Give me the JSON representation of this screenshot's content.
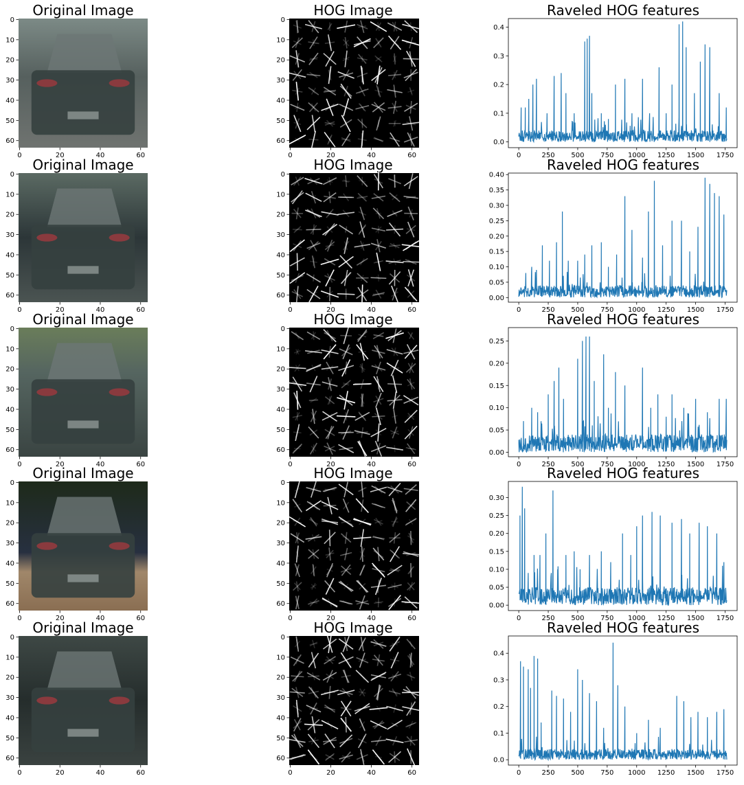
{
  "figure": {
    "columns": [
      {
        "title": "Original Image"
      },
      {
        "title": "HOG Image"
      },
      {
        "title": "Raveled HOG features"
      }
    ],
    "image_axes": {
      "xticks": [
        "0",
        "20",
        "40",
        "60"
      ],
      "yticks": [
        "0",
        "10",
        "20",
        "30",
        "40",
        "50",
        "60"
      ],
      "xticks_values": [
        0,
        20,
        40,
        60
      ],
      "yticks_values": [
        0,
        10,
        20,
        30,
        40,
        50,
        60
      ],
      "extent": [
        -0.5,
        63.5
      ]
    },
    "colors": {
      "line": "#1f77b4",
      "hog_background": "#000000",
      "hog_stroke": "#ffffff",
      "car_body": "#35403f",
      "background": "#ffffff"
    }
  },
  "chart_data": [
    {
      "type": "line",
      "title": "Raveled HOG features",
      "row": 1,
      "x_range": [
        0,
        1764
      ],
      "xticks": [
        0,
        250,
        500,
        750,
        1000,
        1250,
        1500,
        1750
      ],
      "ylim": [
        -0.02,
        0.43
      ],
      "yticks": [
        "0.0",
        "0.1",
        "0.2",
        "0.3",
        "0.4"
      ],
      "yticks_values": [
        0,
        0.1,
        0.2,
        0.3,
        0.4
      ],
      "peaks": [
        [
          20,
          0.12
        ],
        [
          55,
          0.12
        ],
        [
          85,
          0.15
        ],
        [
          120,
          0.2
        ],
        [
          150,
          0.22
        ],
        [
          240,
          0.1
        ],
        [
          300,
          0.23
        ],
        [
          360,
          0.24
        ],
        [
          400,
          0.17
        ],
        [
          470,
          0.1
        ],
        [
          560,
          0.35
        ],
        [
          580,
          0.36
        ],
        [
          600,
          0.37
        ],
        [
          620,
          0.17
        ],
        [
          700,
          0.1
        ],
        [
          760,
          0.08
        ],
        [
          820,
          0.2
        ],
        [
          900,
          0.22
        ],
        [
          960,
          0.1
        ],
        [
          1050,
          0.22
        ],
        [
          1110,
          0.1
        ],
        [
          1190,
          0.26
        ],
        [
          1250,
          0.1
        ],
        [
          1300,
          0.2
        ],
        [
          1360,
          0.41
        ],
        [
          1390,
          0.42
        ],
        [
          1420,
          0.33
        ],
        [
          1490,
          0.17
        ],
        [
          1540,
          0.28
        ],
        [
          1580,
          0.34
        ],
        [
          1620,
          0.33
        ],
        [
          1700,
          0.17
        ],
        [
          1760,
          0.12
        ]
      ],
      "base": 0.04
    },
    {
      "type": "line",
      "title": "Raveled HOG features",
      "row": 2,
      "x_range": [
        0,
        1764
      ],
      "xticks": [
        0,
        250,
        500,
        750,
        1000,
        1250,
        1500,
        1750
      ],
      "ylim": [
        -0.015,
        0.405
      ],
      "yticks": [
        "0.00",
        "0.05",
        "0.10",
        "0.15",
        "0.20",
        "0.25",
        "0.30",
        "0.35",
        "0.40"
      ],
      "yticks_values": [
        0,
        0.05,
        0.1,
        0.15,
        0.2,
        0.25,
        0.3,
        0.35,
        0.4
      ],
      "peaks": [
        [
          60,
          0.08
        ],
        [
          110,
          0.1
        ],
        [
          150,
          0.09
        ],
        [
          200,
          0.17
        ],
        [
          260,
          0.12
        ],
        [
          320,
          0.18
        ],
        [
          370,
          0.28
        ],
        [
          420,
          0.12
        ],
        [
          500,
          0.12
        ],
        [
          560,
          0.14
        ],
        [
          620,
          0.17
        ],
        [
          700,
          0.18
        ],
        [
          760,
          0.1
        ],
        [
          830,
          0.14
        ],
        [
          900,
          0.33
        ],
        [
          960,
          0.22
        ],
        [
          1050,
          0.13
        ],
        [
          1100,
          0.28
        ],
        [
          1150,
          0.38
        ],
        [
          1220,
          0.17
        ],
        [
          1300,
          0.25
        ],
        [
          1380,
          0.25
        ],
        [
          1450,
          0.15
        ],
        [
          1520,
          0.23
        ],
        [
          1580,
          0.39
        ],
        [
          1620,
          0.37
        ],
        [
          1660,
          0.34
        ],
        [
          1700,
          0.33
        ],
        [
          1740,
          0.27
        ]
      ],
      "base": 0.04
    },
    {
      "type": "line",
      "title": "Raveled HOG features",
      "row": 3,
      "x_range": [
        0,
        1764
      ],
      "xticks": [
        0,
        250,
        500,
        750,
        1000,
        1250,
        1500,
        1750
      ],
      "ylim": [
        -0.01,
        0.28
      ],
      "yticks": [
        "0.00",
        "0.05",
        "0.10",
        "0.15",
        "0.20",
        "0.25"
      ],
      "yticks_values": [
        0,
        0.05,
        0.1,
        0.15,
        0.2,
        0.25
      ],
      "peaks": [
        [
          40,
          0.07
        ],
        [
          110,
          0.1
        ],
        [
          160,
          0.09
        ],
        [
          250,
          0.13
        ],
        [
          300,
          0.16
        ],
        [
          340,
          0.19
        ],
        [
          380,
          0.12
        ],
        [
          500,
          0.21
        ],
        [
          540,
          0.25
        ],
        [
          570,
          0.26
        ],
        [
          600,
          0.26
        ],
        [
          640,
          0.16
        ],
        [
          720,
          0.22
        ],
        [
          760,
          0.1
        ],
        [
          820,
          0.18
        ],
        [
          900,
          0.15
        ],
        [
          1050,
          0.19
        ],
        [
          1120,
          0.1
        ],
        [
          1180,
          0.13
        ],
        [
          1250,
          0.08
        ],
        [
          1300,
          0.13
        ],
        [
          1400,
          0.1
        ],
        [
          1500,
          0.12
        ],
        [
          1600,
          0.09
        ],
        [
          1700,
          0.12
        ],
        [
          1760,
          0.12
        ]
      ],
      "base": 0.04
    },
    {
      "type": "line",
      "title": "Raveled HOG features",
      "row": 4,
      "x_range": [
        0,
        1764
      ],
      "xticks": [
        0,
        250,
        500,
        750,
        1000,
        1250,
        1500,
        1750
      ],
      "ylim": [
        -0.015,
        0.345
      ],
      "yticks": [
        "0.00",
        "0.05",
        "0.10",
        "0.15",
        "0.20",
        "0.25",
        "0.30"
      ],
      "yticks_values": [
        0,
        0.05,
        0.1,
        0.15,
        0.2,
        0.25,
        0.3
      ],
      "peaks": [
        [
          10,
          0.25
        ],
        [
          30,
          0.33
        ],
        [
          50,
          0.27
        ],
        [
          80,
          0.09
        ],
        [
          130,
          0.14
        ],
        [
          180,
          0.14
        ],
        [
          230,
          0.2
        ],
        [
          290,
          0.32
        ],
        [
          330,
          0.1
        ],
        [
          400,
          0.14
        ],
        [
          470,
          0.15
        ],
        [
          520,
          0.1
        ],
        [
          600,
          0.14
        ],
        [
          700,
          0.15
        ],
        [
          780,
          0.12
        ],
        [
          880,
          0.2
        ],
        [
          950,
          0.14
        ],
        [
          1000,
          0.22
        ],
        [
          1050,
          0.25
        ],
        [
          1130,
          0.26
        ],
        [
          1200,
          0.25
        ],
        [
          1300,
          0.23
        ],
        [
          1380,
          0.24
        ],
        [
          1450,
          0.2
        ],
        [
          1530,
          0.23
        ],
        [
          1600,
          0.22
        ],
        [
          1680,
          0.2
        ],
        [
          1740,
          0.12
        ]
      ],
      "base": 0.05
    },
    {
      "type": "line",
      "title": "Raveled HOG features",
      "row": 5,
      "x_range": [
        0,
        1764
      ],
      "xticks": [
        0,
        250,
        500,
        750,
        1000,
        1250,
        1500,
        1750
      ],
      "ylim": [
        -0.02,
        0.465
      ],
      "yticks": [
        "0.0",
        "0.1",
        "0.2",
        "0.3",
        "0.4"
      ],
      "yticks_values": [
        0,
        0.1,
        0.2,
        0.3,
        0.4
      ],
      "peaks": [
        [
          15,
          0.37
        ],
        [
          40,
          0.35
        ],
        [
          80,
          0.34
        ],
        [
          100,
          0.27
        ],
        [
          130,
          0.39
        ],
        [
          160,
          0.38
        ],
        [
          190,
          0.14
        ],
        [
          280,
          0.26
        ],
        [
          320,
          0.24
        ],
        [
          380,
          0.23
        ],
        [
          440,
          0.18
        ],
        [
          500,
          0.34
        ],
        [
          540,
          0.3
        ],
        [
          600,
          0.25
        ],
        [
          660,
          0.22
        ],
        [
          720,
          0.12
        ],
        [
          800,
          0.44
        ],
        [
          840,
          0.28
        ],
        [
          900,
          0.2
        ],
        [
          1000,
          0.1
        ],
        [
          1100,
          0.15
        ],
        [
          1200,
          0.12
        ],
        [
          1340,
          0.24
        ],
        [
          1400,
          0.22
        ],
        [
          1460,
          0.16
        ],
        [
          1520,
          0.18
        ],
        [
          1600,
          0.16
        ],
        [
          1680,
          0.18
        ],
        [
          1740,
          0.19
        ]
      ],
      "base": 0.04
    }
  ]
}
